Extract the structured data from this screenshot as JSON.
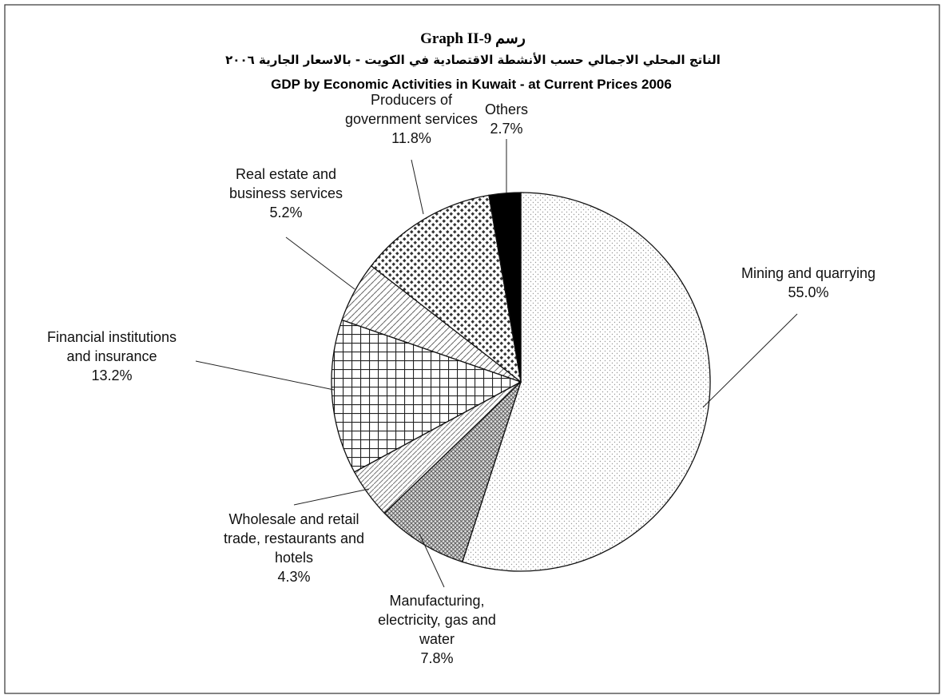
{
  "chart_data": {
    "type": "pie",
    "title": "Graph II-9 رسم",
    "subtitle": "الناتج المحلي الاجمالي حسب الأنشطة الاقتصادية في الكويت - بالاسعار الجارية ٢٠٠٦",
    "subtitle_en": "GDP by  Economic Activities in Kuwait - at Current Prices 2006",
    "categories": [
      "Mining and quarrying",
      "Manufacturing,\nelectricity, gas and\nwater",
      "Wholesale and retail\ntrade, restaurants and\nhotels",
      "Financial institutions\nand insurance",
      "Real estate and\nbusiness services",
      "Producers of\ngovernment services",
      "Others"
    ],
    "values": [
      55.0,
      7.8,
      4.3,
      13.2,
      5.2,
      11.8,
      2.7
    ],
    "value_labels": [
      "55.0%",
      "7.8%",
      "4.3%",
      "13.2%",
      "5.2%",
      "11.8%",
      "2.7%"
    ]
  }
}
